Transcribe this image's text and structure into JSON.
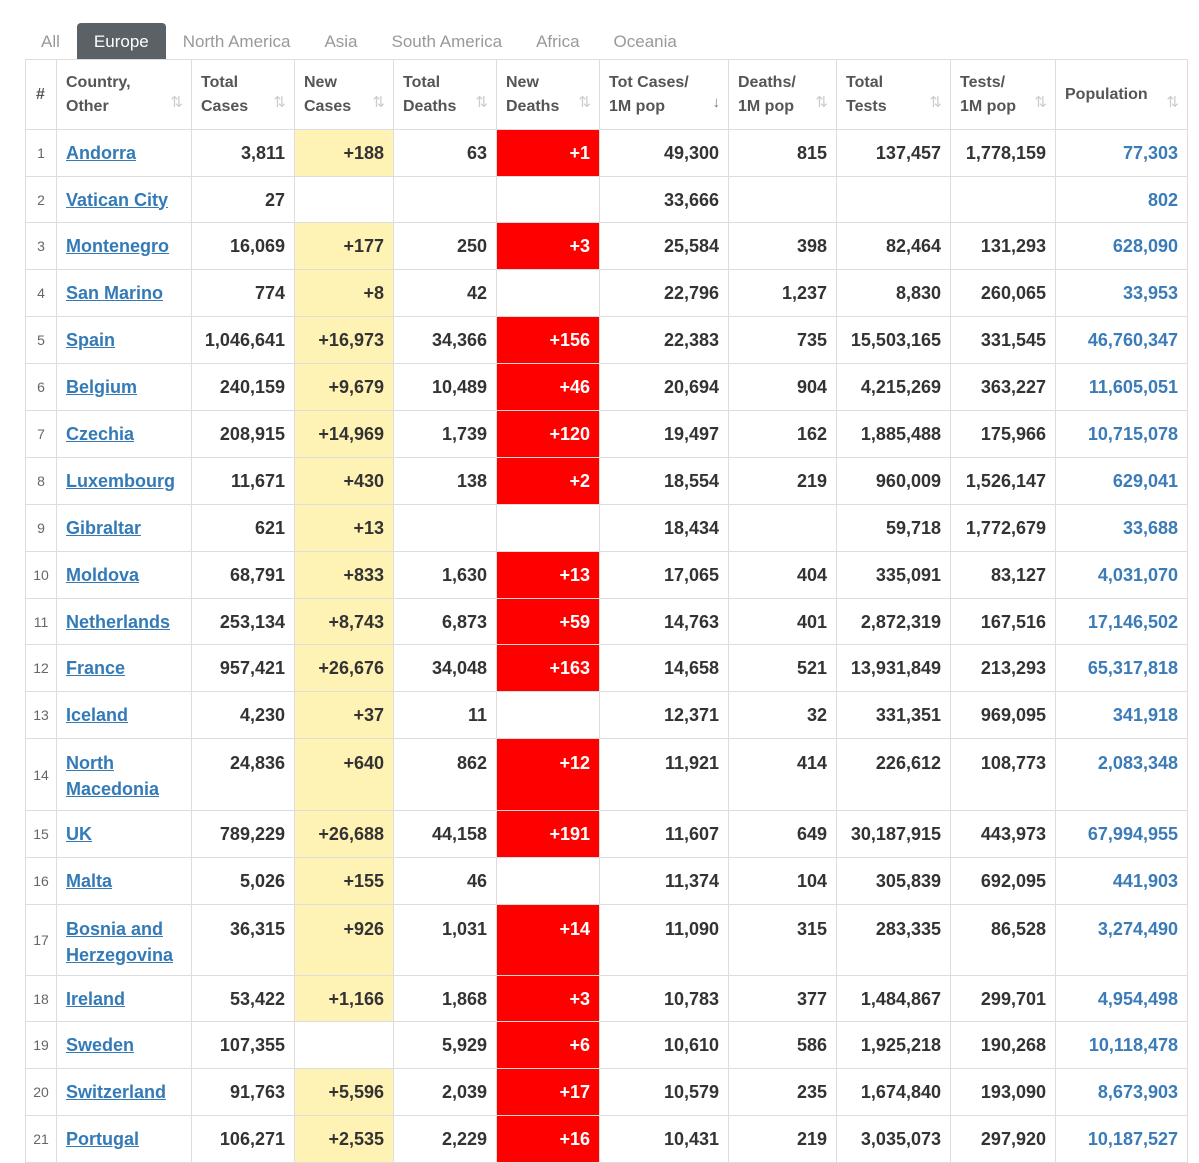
{
  "tabs": [
    "All",
    "Europe",
    "North America",
    "Asia",
    "South America",
    "Africa",
    "Oceania"
  ],
  "active_tab": "Europe",
  "headers": {
    "num": "#",
    "country": [
      "Country,",
      "Other"
    ],
    "total_cases": [
      "Total",
      "Cases"
    ],
    "new_cases": [
      "New",
      "Cases"
    ],
    "total_deaths": [
      "Total",
      "Deaths"
    ],
    "new_deaths": [
      "New",
      "Deaths"
    ],
    "cases_1m": [
      "Tot Cases/",
      "1M pop"
    ],
    "deaths_1m": [
      "Deaths/",
      "1M pop"
    ],
    "total_tests": [
      "Total",
      "Tests"
    ],
    "tests_1m": [
      "Tests/",
      "1M pop"
    ],
    "population": "Population"
  },
  "colors": {
    "new_cases_bg": "#fff2b5",
    "new_deaths_bg": "#ff0000",
    "link": "#337ab7",
    "active_tab_bg": "#5a6268"
  },
  "rows": [
    {
      "num": "1",
      "country": "Andorra",
      "total_cases": "3,811",
      "new_cases": "+188",
      "total_deaths": "63",
      "new_deaths": "+1",
      "cases_1m": "49,300",
      "deaths_1m": "815",
      "total_tests": "137,457",
      "tests_1m": "1,778,159",
      "population": "77,303"
    },
    {
      "num": "2",
      "country": "Vatican City",
      "total_cases": "27",
      "new_cases": "",
      "total_deaths": "",
      "new_deaths": "",
      "cases_1m": "33,666",
      "deaths_1m": "",
      "total_tests": "",
      "tests_1m": "",
      "population": "802"
    },
    {
      "num": "3",
      "country": "Montenegro",
      "total_cases": "16,069",
      "new_cases": "+177",
      "total_deaths": "250",
      "new_deaths": "+3",
      "cases_1m": "25,584",
      "deaths_1m": "398",
      "total_tests": "82,464",
      "tests_1m": "131,293",
      "population": "628,090"
    },
    {
      "num": "4",
      "country": "San Marino",
      "total_cases": "774",
      "new_cases": "+8",
      "total_deaths": "42",
      "new_deaths": "",
      "cases_1m": "22,796",
      "deaths_1m": "1,237",
      "total_tests": "8,830",
      "tests_1m": "260,065",
      "population": "33,953"
    },
    {
      "num": "5",
      "country": "Spain",
      "total_cases": "1,046,641",
      "new_cases": "+16,973",
      "total_deaths": "34,366",
      "new_deaths": "+156",
      "cases_1m": "22,383",
      "deaths_1m": "735",
      "total_tests": "15,503,165",
      "tests_1m": "331,545",
      "population": "46,760,347"
    },
    {
      "num": "6",
      "country": "Belgium",
      "total_cases": "240,159",
      "new_cases": "+9,679",
      "total_deaths": "10,489",
      "new_deaths": "+46",
      "cases_1m": "20,694",
      "deaths_1m": "904",
      "total_tests": "4,215,269",
      "tests_1m": "363,227",
      "population": "11,605,051"
    },
    {
      "num": "7",
      "country": "Czechia",
      "total_cases": "208,915",
      "new_cases": "+14,969",
      "total_deaths": "1,739",
      "new_deaths": "+120",
      "cases_1m": "19,497",
      "deaths_1m": "162",
      "total_tests": "1,885,488",
      "tests_1m": "175,966",
      "population": "10,715,078"
    },
    {
      "num": "8",
      "country": "Luxembourg",
      "total_cases": "11,671",
      "new_cases": "+430",
      "total_deaths": "138",
      "new_deaths": "+2",
      "cases_1m": "18,554",
      "deaths_1m": "219",
      "total_tests": "960,009",
      "tests_1m": "1,526,147",
      "population": "629,041"
    },
    {
      "num": "9",
      "country": "Gibraltar",
      "total_cases": "621",
      "new_cases": "+13",
      "total_deaths": "",
      "new_deaths": "",
      "cases_1m": "18,434",
      "deaths_1m": "",
      "total_tests": "59,718",
      "tests_1m": "1,772,679",
      "population": "33,688"
    },
    {
      "num": "10",
      "country": "Moldova",
      "total_cases": "68,791",
      "new_cases": "+833",
      "total_deaths": "1,630",
      "new_deaths": "+13",
      "cases_1m": "17,065",
      "deaths_1m": "404",
      "total_tests": "335,091",
      "tests_1m": "83,127",
      "population": "4,031,070"
    },
    {
      "num": "11",
      "country": "Netherlands",
      "total_cases": "253,134",
      "new_cases": "+8,743",
      "total_deaths": "6,873",
      "new_deaths": "+59",
      "cases_1m": "14,763",
      "deaths_1m": "401",
      "total_tests": "2,872,319",
      "tests_1m": "167,516",
      "population": "17,146,502"
    },
    {
      "num": "12",
      "country": "France",
      "total_cases": "957,421",
      "new_cases": "+26,676",
      "total_deaths": "34,048",
      "new_deaths": "+163",
      "cases_1m": "14,658",
      "deaths_1m": "521",
      "total_tests": "13,931,849",
      "tests_1m": "213,293",
      "population": "65,317,818"
    },
    {
      "num": "13",
      "country": "Iceland",
      "total_cases": "4,230",
      "new_cases": "+37",
      "total_deaths": "11",
      "new_deaths": "",
      "cases_1m": "12,371",
      "deaths_1m": "32",
      "total_tests": "331,351",
      "tests_1m": "969,095",
      "population": "341,918"
    },
    {
      "num": "14",
      "country": "North Macedonia",
      "total_cases": "24,836",
      "new_cases": "+640",
      "total_deaths": "862",
      "new_deaths": "+12",
      "cases_1m": "11,921",
      "deaths_1m": "414",
      "total_tests": "226,612",
      "tests_1m": "108,773",
      "population": "2,083,348"
    },
    {
      "num": "15",
      "country": "UK",
      "total_cases": "789,229",
      "new_cases": "+26,688",
      "total_deaths": "44,158",
      "new_deaths": "+191",
      "cases_1m": "11,607",
      "deaths_1m": "649",
      "total_tests": "30,187,915",
      "tests_1m": "443,973",
      "population": "67,994,955"
    },
    {
      "num": "16",
      "country": "Malta",
      "total_cases": "5,026",
      "new_cases": "+155",
      "total_deaths": "46",
      "new_deaths": "",
      "cases_1m": "11,374",
      "deaths_1m": "104",
      "total_tests": "305,839",
      "tests_1m": "692,095",
      "population": "441,903"
    },
    {
      "num": "17",
      "country": "Bosnia and Herzegovina",
      "total_cases": "36,315",
      "new_cases": "+926",
      "total_deaths": "1,031",
      "new_deaths": "+14",
      "cases_1m": "11,090",
      "deaths_1m": "315",
      "total_tests": "283,335",
      "tests_1m": "86,528",
      "population": "3,274,490"
    },
    {
      "num": "18",
      "country": "Ireland",
      "total_cases": "53,422",
      "new_cases": "+1,166",
      "total_deaths": "1,868",
      "new_deaths": "+3",
      "cases_1m": "10,783",
      "deaths_1m": "377",
      "total_tests": "1,484,867",
      "tests_1m": "299,701",
      "population": "4,954,498"
    },
    {
      "num": "19",
      "country": "Sweden",
      "total_cases": "107,355",
      "new_cases": "",
      "total_deaths": "5,929",
      "new_deaths": "+6",
      "cases_1m": "10,610",
      "deaths_1m": "586",
      "total_tests": "1,925,218",
      "tests_1m": "190,268",
      "population": "10,118,478"
    },
    {
      "num": "20",
      "country": "Switzerland",
      "total_cases": "91,763",
      "new_cases": "+5,596",
      "total_deaths": "2,039",
      "new_deaths": "+17",
      "cases_1m": "10,579",
      "deaths_1m": "235",
      "total_tests": "1,674,840",
      "tests_1m": "193,090",
      "population": "8,673,903"
    },
    {
      "num": "21",
      "country": "Portugal",
      "total_cases": "106,271",
      "new_cases": "+2,535",
      "total_deaths": "2,229",
      "new_deaths": "+16",
      "cases_1m": "10,431",
      "deaths_1m": "219",
      "total_tests": "3,035,073",
      "tests_1m": "297,920",
      "population": "10,187,527"
    }
  ]
}
